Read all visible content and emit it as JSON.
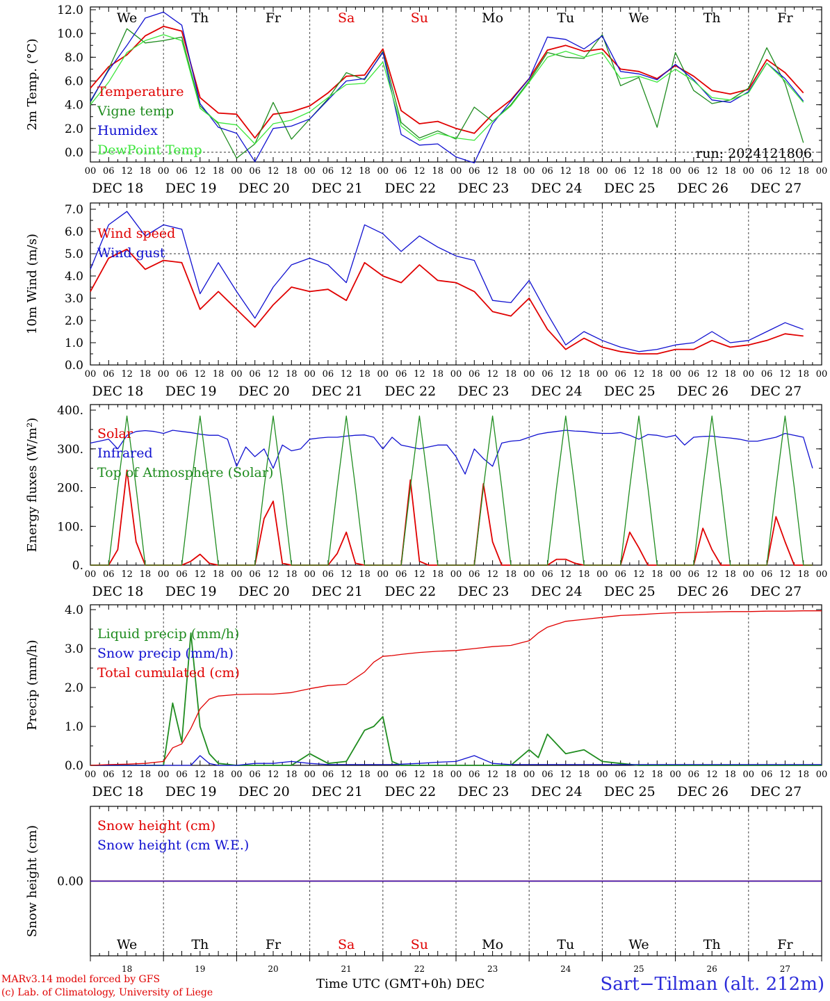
{
  "chart_data": [
    {
      "type": "line",
      "ylabel": "2m Temp. (°C)",
      "ylim": [
        -1,
        12
      ],
      "yticks": [
        "12.0",
        "10.0",
        "8.0",
        "6.0",
        "4.0",
        "2.0",
        "0.0"
      ],
      "ytick_values": [
        12,
        10,
        8,
        6,
        4,
        2,
        0
      ],
      "reference_line": 0,
      "annotation": "run: 2024121806",
      "x_hours": [
        0,
        6,
        12,
        18,
        24,
        30,
        36,
        42,
        48,
        54,
        60,
        66,
        72,
        78,
        84,
        90,
        96,
        102,
        108,
        114,
        120,
        126,
        132,
        138,
        144,
        150,
        156,
        162,
        168,
        174,
        180,
        186,
        192,
        198,
        204,
        210,
        216,
        222,
        228,
        234
      ],
      "series": [
        {
          "name": "Temperature",
          "color": "#e00000",
          "values": [
            5.4,
            7.2,
            8.2,
            9.8,
            10.6,
            10.2,
            4.6,
            3.3,
            3.2,
            1.2,
            3.2,
            3.4,
            3.9,
            5.0,
            6.4,
            6.5,
            8.7,
            3.5,
            2.4,
            2.6,
            2.0,
            1.6,
            3.2,
            4.4,
            6.2,
            8.6,
            9.0,
            8.5,
            8.7,
            7.0,
            6.8,
            6.2,
            7.3,
            6.4,
            5.2,
            4.9,
            5.3,
            7.8,
            6.7,
            5.0
          ]
        },
        {
          "name": "Vigne temp",
          "color": "#1f8c1f",
          "values": [
            4.2,
            7.0,
            10.4,
            9.2,
            9.4,
            9.7,
            3.9,
            2.4,
            -0.5,
            0.7,
            4.2,
            1.1,
            2.8,
            4.5,
            6.7,
            6.1,
            8.5,
            2.5,
            1.2,
            1.8,
            1.1,
            3.8,
            2.6,
            4.0,
            6.0,
            8.4,
            8.0,
            7.9,
            9.9,
            5.6,
            6.3,
            2.1,
            8.4,
            5.2,
            4.1,
            4.4,
            5.4,
            8.8,
            5.8,
            0.8
          ]
        },
        {
          "name": "Humidex",
          "color": "#1010d0",
          "values": [
            4.3,
            6.9,
            9.0,
            11.3,
            11.8,
            10.7,
            4.1,
            2.1,
            1.6,
            -0.8,
            2.0,
            2.2,
            2.8,
            4.4,
            6.0,
            6.2,
            8.4,
            1.5,
            0.6,
            0.7,
            -0.4,
            -0.9,
            2.4,
            4.3,
            6.2,
            9.7,
            9.5,
            8.7,
            9.8,
            6.8,
            6.6,
            6.1,
            7.4,
            6.1,
            4.4,
            4.2,
            5.1,
            7.5,
            6.2,
            4.3
          ]
        },
        {
          "name": "DewPoint Temp",
          "color": "#3ce63c",
          "values": [
            4.0,
            5.9,
            8.4,
            9.4,
            9.9,
            9.4,
            3.7,
            2.5,
            2.3,
            0.7,
            2.4,
            2.7,
            3.4,
            4.6,
            5.7,
            5.8,
            7.6,
            2.2,
            1.0,
            1.6,
            1.2,
            1.0,
            2.6,
            3.9,
            5.9,
            8.0,
            8.5,
            8.0,
            8.4,
            6.2,
            6.4,
            5.9,
            7.0,
            6.0,
            4.6,
            4.4,
            5.0,
            7.5,
            6.0,
            4.2
          ]
        }
      ],
      "day_labels": [
        "We",
        "Th",
        "Fr",
        "Sa",
        "Su",
        "Mo",
        "Tu",
        "We",
        "Th",
        "Fr"
      ],
      "day_label_colors": [
        "#000000",
        "#000000",
        "#000000",
        "#e00000",
        "#e00000",
        "#000000",
        "#000000",
        "#000000",
        "#000000",
        "#000000"
      ]
    },
    {
      "type": "line",
      "ylabel": "10m Wind (m/s)",
      "ylim": [
        0,
        7
      ],
      "yticks": [
        "7.0",
        "6.0",
        "5.0",
        "4.0",
        "3.0",
        "2.0",
        "1.0",
        "0.0"
      ],
      "ytick_values": [
        7,
        6,
        5,
        4,
        3,
        2,
        1,
        0
      ],
      "reference_line": 5,
      "x_hours": [
        0,
        6,
        12,
        18,
        24,
        30,
        36,
        42,
        48,
        54,
        60,
        66,
        72,
        78,
        84,
        90,
        96,
        102,
        108,
        114,
        120,
        126,
        132,
        138,
        144,
        150,
        156,
        162,
        168,
        174,
        180,
        186,
        192,
        198,
        204,
        210,
        216,
        222,
        228,
        234
      ],
      "series": [
        {
          "name": "Wind speed",
          "color": "#e00000",
          "values": [
            3.3,
            4.8,
            5.2,
            4.3,
            4.7,
            4.6,
            2.5,
            3.3,
            2.5,
            1.7,
            2.7,
            3.5,
            3.3,
            3.4,
            2.9,
            4.6,
            4.0,
            3.7,
            4.5,
            3.8,
            3.7,
            3.3,
            2.4,
            2.2,
            3.0,
            1.6,
            0.7,
            1.2,
            0.8,
            0.6,
            0.5,
            0.5,
            0.7,
            0.7,
            1.1,
            0.8,
            0.9,
            1.1,
            1.4,
            1.3
          ]
        },
        {
          "name": "Wind gust",
          "color": "#1010d0",
          "values": [
            4.3,
            6.3,
            6.9,
            5.8,
            6.3,
            6.1,
            3.2,
            4.6,
            3.3,
            2.1,
            3.5,
            4.5,
            4.8,
            4.5,
            3.7,
            6.3,
            5.9,
            5.1,
            5.8,
            5.3,
            4.9,
            4.7,
            2.9,
            2.8,
            3.8,
            2.3,
            0.9,
            1.5,
            1.1,
            0.8,
            0.6,
            0.7,
            0.9,
            1.0,
            1.5,
            1.0,
            1.1,
            1.5,
            1.9,
            1.6
          ]
        }
      ]
    },
    {
      "type": "line",
      "ylabel": "Energy fluxes (W/m²)",
      "ylim": [
        0,
        400
      ],
      "yticks": [
        "400.",
        "300.",
        "200.",
        "100.",
        "0."
      ],
      "ytick_values": [
        400,
        300,
        200,
        100,
        0
      ],
      "x_hours": [
        0,
        3,
        6,
        9,
        12,
        15,
        18,
        21,
        24,
        27,
        30,
        33,
        36,
        39,
        42,
        45,
        48,
        51,
        54,
        57,
        60,
        63,
        66,
        69,
        72,
        75,
        78,
        81,
        84,
        87,
        90,
        93,
        96,
        99,
        102,
        105,
        108,
        111,
        114,
        117,
        120,
        123,
        126,
        129,
        132,
        135,
        138,
        141,
        144,
        147,
        150,
        153,
        156,
        159,
        162,
        165,
        168,
        171,
        174,
        177,
        180,
        183,
        186,
        189,
        192,
        195,
        198,
        201,
        204,
        207,
        210,
        213,
        216,
        219,
        222,
        225,
        228,
        231,
        234,
        237
      ],
      "series": [
        {
          "name": "Solar",
          "color": "#e00000",
          "values": [
            0,
            0,
            0,
            40,
            245,
            60,
            0,
            0,
            0,
            0,
            0,
            10,
            28,
            5,
            0,
            0,
            0,
            0,
            0,
            120,
            165,
            5,
            0,
            0,
            0,
            0,
            0,
            30,
            85,
            5,
            0,
            0,
            0,
            0,
            0,
            220,
            10,
            0,
            0,
            0,
            0,
            0,
            0,
            210,
            60,
            0,
            0,
            0,
            0,
            0,
            0,
            15,
            15,
            5,
            0,
            0,
            0,
            0,
            0,
            85,
            45,
            0,
            0,
            0,
            0,
            0,
            0,
            95,
            40,
            0,
            0,
            0,
            0,
            0,
            0,
            125,
            60,
            0,
            0,
            0
          ]
        },
        {
          "name": "Infrared",
          "color": "#1010d0",
          "values": [
            315,
            320,
            325,
            300,
            335,
            345,
            347,
            345,
            340,
            348,
            345,
            342,
            338,
            335,
            335,
            325,
            255,
            305,
            280,
            300,
            250,
            310,
            295,
            300,
            325,
            328,
            330,
            330,
            333,
            335,
            336,
            330,
            300,
            330,
            310,
            305,
            300,
            305,
            310,
            310,
            280,
            235,
            300,
            275,
            255,
            315,
            320,
            322,
            330,
            338,
            342,
            345,
            348,
            346,
            345,
            342,
            340,
            340,
            342,
            335,
            325,
            337,
            335,
            330,
            335,
            310,
            330,
            332,
            333,
            330,
            328,
            325,
            320,
            320,
            325,
            330,
            340,
            335,
            330,
            250
          ]
        },
        {
          "name": "Top of Atmosphere (Solar)",
          "color": "#1f8c1f",
          "values": [
            0,
            0,
            0,
            200,
            385,
            200,
            0,
            0,
            0,
            0,
            0,
            200,
            385,
            200,
            0,
            0,
            0,
            0,
            0,
            200,
            385,
            200,
            0,
            0,
            0,
            0,
            0,
            200,
            385,
            200,
            0,
            0,
            0,
            0,
            0,
            200,
            385,
            200,
            0,
            0,
            0,
            0,
            0,
            200,
            385,
            200,
            0,
            0,
            0,
            0,
            0,
            200,
            385,
            200,
            0,
            0,
            0,
            0,
            0,
            200,
            385,
            200,
            0,
            0,
            0,
            0,
            0,
            200,
            385,
            200,
            0,
            0,
            0,
            0,
            0,
            200,
            385,
            200,
            0,
            0
          ]
        }
      ]
    },
    {
      "type": "line",
      "ylabel": "Precip (mm/h)",
      "ylim": [
        0,
        4
      ],
      "yticks": [
        "4.0",
        "3.0",
        "2.0",
        "1.0",
        "0.0"
      ],
      "ytick_values": [
        4,
        3,
        2,
        1,
        0
      ],
      "x_hours": [
        0,
        6,
        12,
        18,
        24,
        27,
        30,
        33,
        36,
        39,
        42,
        48,
        54,
        60,
        66,
        72,
        78,
        84,
        90,
        93,
        96,
        99,
        102,
        108,
        114,
        120,
        126,
        132,
        138,
        144,
        147,
        150,
        156,
        162,
        168,
        174,
        180,
        186,
        192,
        198,
        204,
        210,
        216,
        222,
        228,
        234,
        240
      ],
      "series": [
        {
          "name": "Liquid precip (mm/h)",
          "color": "#1f8c1f",
          "values": [
            0,
            0,
            0,
            0,
            0,
            1.6,
            0.6,
            3.4,
            1.0,
            0.3,
            0.05,
            0,
            0,
            0,
            0,
            0.3,
            0.05,
            0.1,
            0.9,
            1.0,
            1.25,
            0.1,
            0,
            0,
            0,
            0,
            0,
            0,
            0,
            0.4,
            0.2,
            0.8,
            0.3,
            0.4,
            0.1,
            0.05,
            0,
            0,
            0,
            0,
            0,
            0,
            0,
            0,
            0,
            0,
            0
          ]
        },
        {
          "name": "Snow precip (mm/h)",
          "color": "#1010d0",
          "values": [
            0,
            0,
            0,
            0,
            0,
            0,
            0,
            0,
            0.25,
            0.05,
            0,
            0,
            0.05,
            0.05,
            0.1,
            0.05,
            0.02,
            0.02,
            0.02,
            0.02,
            0.02,
            0.02,
            0.03,
            0.05,
            0.08,
            0.1,
            0.25,
            0.05,
            0.02,
            0.02,
            0.02,
            0.02,
            0.02,
            0.02,
            0.02,
            0.02,
            0.02,
            0.02,
            0.02,
            0.02,
            0.02,
            0.02,
            0.02,
            0.02,
            0.02,
            0.02,
            0.02
          ]
        },
        {
          "name": "Total cumulated (cm)",
          "color": "#e00000",
          "values": [
            0,
            0.02,
            0.03,
            0.05,
            0.1,
            0.45,
            0.55,
            0.95,
            1.45,
            1.7,
            1.78,
            1.82,
            1.83,
            1.83,
            1.87,
            1.97,
            2.05,
            2.08,
            2.4,
            2.65,
            2.8,
            2.82,
            2.85,
            2.9,
            2.93,
            2.95,
            3.0,
            3.05,
            3.08,
            3.2,
            3.4,
            3.55,
            3.7,
            3.75,
            3.8,
            3.85,
            3.87,
            3.9,
            3.92,
            3.93,
            3.94,
            3.95,
            3.95,
            3.96,
            3.96,
            3.97,
            3.97
          ]
        }
      ]
    },
    {
      "type": "line",
      "ylabel": "Snow height (cm)",
      "ylim": [
        -1,
        1
      ],
      "yticks": [
        "0.00"
      ],
      "ytick_values": [
        0
      ],
      "x_hours": [
        0,
        240
      ],
      "series": [
        {
          "name": "Snow height (cm)",
          "color": "#e00000",
          "values": [
            0,
            0
          ]
        },
        {
          "name": "Snow height (cm W.E.)",
          "color": "#1010d0",
          "values": [
            0,
            0
          ]
        }
      ],
      "day_labels": [
        "We",
        "Th",
        "Fr",
        "Sa",
        "Su",
        "Mo",
        "Tu",
        "We",
        "Th",
        "Fr"
      ],
      "day_label_colors": [
        "#000000",
        "#000000",
        "#000000",
        "#e00000",
        "#e00000",
        "#000000",
        "#000000",
        "#000000",
        "#000000",
        "#000000"
      ],
      "day_numbers": [
        "18",
        "19",
        "20",
        "21",
        "22",
        "23",
        "24",
        "25",
        "26",
        "27"
      ]
    }
  ],
  "x_axis": {
    "hour_ticks": [
      "00",
      "06",
      "12",
      "18"
    ],
    "hour_end": "00",
    "dates": [
      "DEC 18",
      "DEC 19",
      "DEC 20",
      "DEC 21",
      "DEC 22",
      "DEC 23",
      "DEC 24",
      "DEC 25",
      "DEC 26",
      "DEC 27"
    ]
  },
  "footer": {
    "model_line": "MARv3.14 model forced by GFS",
    "credit_line": "(c) Lab. of Climatology, University of Liege",
    "time_label": "Time UTC (GMT+0h)",
    "month_label": "DEC",
    "station": "Sart−Tilman (alt. 212m)"
  },
  "colors": {
    "red": "#e00000",
    "green": "#1f8c1f",
    "blue": "#1010d0",
    "light_green": "#3ce63c",
    "station_blue": "#2b2bd9"
  }
}
